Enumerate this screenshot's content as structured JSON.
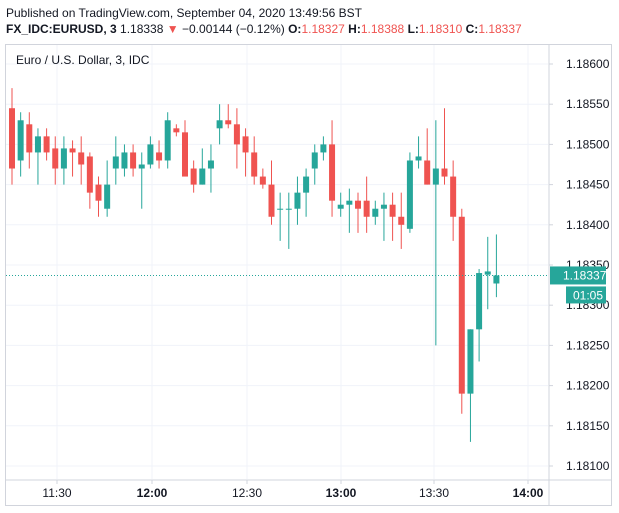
{
  "header": {
    "published": "Published on TradingView.com, September 04, 2020 13:49:56 BST",
    "symbol": "FX_IDC:EURUSD, 3",
    "last": "1.18338",
    "arrow": "▼",
    "change": "−0.00144 (−0.12%)",
    "o_label": "O:",
    "o_value": "1.18327",
    "h_label": "H:",
    "h_value": "1.18388",
    "l_label": "L:",
    "l_value": "1.18310",
    "c_label": "C:",
    "c_value": "1.18337"
  },
  "chart_title": "Euro / U.S. Dollar, 3, IDC",
  "price_badge": {
    "value": "1.18337",
    "countdown": "01:05"
  },
  "colors": {
    "up": "#26a69a",
    "down": "#ef5350",
    "accent": "#26a69a"
  },
  "chart_data": {
    "type": "candlestick",
    "ylim": [
      1.18075,
      1.18625
    ],
    "y_ticks": [
      "1.18600",
      "1.18550",
      "1.18500",
      "1.18450",
      "1.18400",
      "1.18350",
      "1.18300",
      "1.18250",
      "1.18200",
      "1.18150",
      "1.18100"
    ],
    "x_ticks": [
      "11:30",
      "12:00",
      "12:30",
      "13:00",
      "13:30",
      "14:00"
    ],
    "x_tick_bold": [
      false,
      true,
      false,
      true,
      false,
      true
    ],
    "last_price": 1.18337,
    "candles": [
      {
        "o": 1.18545,
        "h": 1.1857,
        "l": 1.1845,
        "c": 1.1847
      },
      {
        "o": 1.1848,
        "h": 1.1854,
        "l": 1.1846,
        "c": 1.1853
      },
      {
        "o": 1.18525,
        "h": 1.1854,
        "l": 1.1847,
        "c": 1.1849
      },
      {
        "o": 1.1849,
        "h": 1.1852,
        "l": 1.1845,
        "c": 1.1851
      },
      {
        "o": 1.1851,
        "h": 1.1852,
        "l": 1.1848,
        "c": 1.1849
      },
      {
        "o": 1.18495,
        "h": 1.1851,
        "l": 1.1845,
        "c": 1.1847
      },
      {
        "o": 1.1847,
        "h": 1.1851,
        "l": 1.1845,
        "c": 1.18495
      },
      {
        "o": 1.18495,
        "h": 1.18505,
        "l": 1.1846,
        "c": 1.1849
      },
      {
        "o": 1.1849,
        "h": 1.1851,
        "l": 1.1845,
        "c": 1.18475
      },
      {
        "o": 1.18485,
        "h": 1.1849,
        "l": 1.1842,
        "c": 1.1844
      },
      {
        "o": 1.1845,
        "h": 1.1846,
        "l": 1.1841,
        "c": 1.1843
      },
      {
        "o": 1.1842,
        "h": 1.1848,
        "l": 1.1841,
        "c": 1.1845
      },
      {
        "o": 1.1847,
        "h": 1.1851,
        "l": 1.1845,
        "c": 1.18485
      },
      {
        "o": 1.1847,
        "h": 1.185,
        "l": 1.1846,
        "c": 1.1849
      },
      {
        "o": 1.1849,
        "h": 1.185,
        "l": 1.1846,
        "c": 1.1847
      },
      {
        "o": 1.1847,
        "h": 1.1849,
        "l": 1.1842,
        "c": 1.18475
      },
      {
        "o": 1.18475,
        "h": 1.1851,
        "l": 1.1847,
        "c": 1.185
      },
      {
        "o": 1.1849,
        "h": 1.18505,
        "l": 1.1847,
        "c": 1.1848
      },
      {
        "o": 1.1848,
        "h": 1.1854,
        "l": 1.1847,
        "c": 1.1853
      },
      {
        "o": 1.1852,
        "h": 1.18525,
        "l": 1.1851,
        "c": 1.18515
      },
      {
        "o": 1.18515,
        "h": 1.1853,
        "l": 1.1846,
        "c": 1.1846
      },
      {
        "o": 1.1847,
        "h": 1.1848,
        "l": 1.1844,
        "c": 1.1845
      },
      {
        "o": 1.1845,
        "h": 1.18495,
        "l": 1.1845,
        "c": 1.1847
      },
      {
        "o": 1.1847,
        "h": 1.185,
        "l": 1.1844,
        "c": 1.1848
      },
      {
        "o": 1.1852,
        "h": 1.1855,
        "l": 1.185,
        "c": 1.1853
      },
      {
        "o": 1.1853,
        "h": 1.1855,
        "l": 1.1852,
        "c": 1.18525
      },
      {
        "o": 1.18525,
        "h": 1.18545,
        "l": 1.1847,
        "c": 1.185
      },
      {
        "o": 1.1851,
        "h": 1.1852,
        "l": 1.1846,
        "c": 1.1849
      },
      {
        "o": 1.1849,
        "h": 1.1851,
        "l": 1.1845,
        "c": 1.1846
      },
      {
        "o": 1.1846,
        "h": 1.1847,
        "l": 1.18445,
        "c": 1.1845
      },
      {
        "o": 1.1845,
        "h": 1.1848,
        "l": 1.184,
        "c": 1.1841
      },
      {
        "o": 1.1842,
        "h": 1.1844,
        "l": 1.1838,
        "c": 1.1842
      },
      {
        "o": 1.1842,
        "h": 1.1844,
        "l": 1.1837,
        "c": 1.1842
      },
      {
        "o": 1.1842,
        "h": 1.1846,
        "l": 1.184,
        "c": 1.1844
      },
      {
        "o": 1.1844,
        "h": 1.1847,
        "l": 1.1841,
        "c": 1.1846
      },
      {
        "o": 1.1847,
        "h": 1.185,
        "l": 1.1845,
        "c": 1.1849
      },
      {
        "o": 1.1849,
        "h": 1.1851,
        "l": 1.1848,
        "c": 1.185
      },
      {
        "o": 1.185,
        "h": 1.1853,
        "l": 1.1841,
        "c": 1.1843
      },
      {
        "o": 1.1842,
        "h": 1.1844,
        "l": 1.1841,
        "c": 1.18425
      },
      {
        "o": 1.18425,
        "h": 1.18445,
        "l": 1.1839,
        "c": 1.1843
      },
      {
        "o": 1.1843,
        "h": 1.1844,
        "l": 1.1839,
        "c": 1.1842
      },
      {
        "o": 1.1843,
        "h": 1.1846,
        "l": 1.1839,
        "c": 1.1841
      },
      {
        "o": 1.1841,
        "h": 1.1843,
        "l": 1.184,
        "c": 1.1842
      },
      {
        "o": 1.1842,
        "h": 1.1844,
        "l": 1.1838,
        "c": 1.18425
      },
      {
        "o": 1.18425,
        "h": 1.1844,
        "l": 1.1838,
        "c": 1.1841
      },
      {
        "o": 1.1841,
        "h": 1.1844,
        "l": 1.1837,
        "c": 1.184
      },
      {
        "o": 1.18395,
        "h": 1.1849,
        "l": 1.1839,
        "c": 1.1848
      },
      {
        "o": 1.1848,
        "h": 1.1851,
        "l": 1.1847,
        "c": 1.18485
      },
      {
        "o": 1.1848,
        "h": 1.1852,
        "l": 1.1845,
        "c": 1.1845
      },
      {
        "o": 1.1845,
        "h": 1.1853,
        "l": 1.1825,
        "c": 1.1847
      },
      {
        "o": 1.1847,
        "h": 1.18545,
        "l": 1.1845,
        "c": 1.1846
      },
      {
        "o": 1.1846,
        "h": 1.1848,
        "l": 1.1838,
        "c": 1.1841
      },
      {
        "o": 1.1841,
        "h": 1.1842,
        "l": 1.18165,
        "c": 1.1819
      },
      {
        "o": 1.1819,
        "h": 1.1827,
        "l": 1.1813,
        "c": 1.1827
      },
      {
        "o": 1.1827,
        "h": 1.18345,
        "l": 1.1823,
        "c": 1.1834
      },
      {
        "o": 1.18338,
        "h": 1.18385,
        "l": 1.18295,
        "c": 1.18342
      },
      {
        "o": 1.18327,
        "h": 1.18388,
        "l": 1.1831,
        "c": 1.18337
      }
    ]
  }
}
